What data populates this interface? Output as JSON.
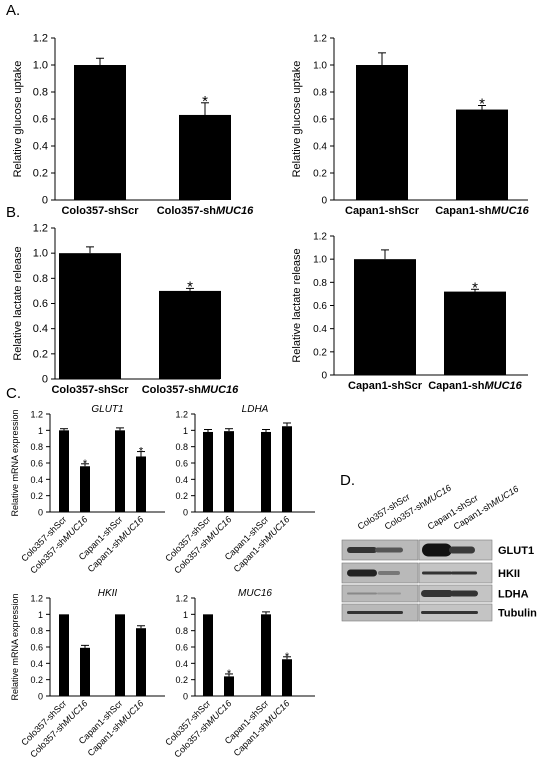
{
  "panels": {
    "a": "A.",
    "b": "B.",
    "c": "C.",
    "d": "D."
  },
  "chart_data": [
    {
      "id": "a1",
      "type": "bar",
      "ylabel": "Relative glucose uptake",
      "categories": [
        "Colo357-shScr",
        "Colo357-shMUC16"
      ],
      "values": [
        1.0,
        0.63
      ],
      "errors": [
        0.05,
        0.09
      ],
      "sig": [
        "",
        "*"
      ],
      "ylim": [
        0,
        1.2
      ],
      "yticks": [
        "0",
        "0.2",
        "0.4",
        "0.6",
        "0.8",
        "1.0",
        "1.2"
      ]
    },
    {
      "id": "a2",
      "type": "bar",
      "ylabel": "Relative glucose uptake",
      "categories": [
        "Capan1-shScr",
        "Capan1-shMUC16"
      ],
      "values": [
        1.0,
        0.67
      ],
      "errors": [
        0.09,
        0.03
      ],
      "sig": [
        "",
        "*"
      ],
      "ylim": [
        0,
        1.2
      ],
      "yticks": [
        "0",
        "0.2",
        "0.4",
        "0.6",
        "0.8",
        "1.0",
        "1.2"
      ]
    },
    {
      "id": "b1",
      "type": "bar",
      "ylabel": "Relative lactate release",
      "categories": [
        "Colo357-shScr",
        "Colo357-shMUC16"
      ],
      "values": [
        1.0,
        0.7
      ],
      "errors": [
        0.05,
        0.02
      ],
      "sig": [
        "",
        "*"
      ],
      "ylim": [
        0,
        1.2
      ],
      "yticks": [
        "0",
        "0.2",
        "0.4",
        "0.6",
        "0.8",
        "1.0",
        "1.2"
      ]
    },
    {
      "id": "b2",
      "type": "bar",
      "ylabel": "Relative lactate release",
      "categories": [
        "Capan1-shScr",
        "Capan1-shMUC16"
      ],
      "values": [
        1.0,
        0.72
      ],
      "errors": [
        0.08,
        0.02
      ],
      "sig": [
        "",
        "*"
      ],
      "ylim": [
        0,
        1.2
      ],
      "yticks": [
        "0",
        "0.2",
        "0.4",
        "0.6",
        "0.8",
        "1.0",
        "1.2"
      ]
    },
    {
      "id": "c1",
      "type": "bar",
      "title": "GLUT1",
      "ylabel": "Relative mRNA expression",
      "categories": [
        "Colo357-shScr",
        "Colo357-shMUC16",
        "Capan1-shScr",
        "Capan1-shMUC16"
      ],
      "values": [
        1.0,
        0.56,
        1.0,
        0.68
      ],
      "errors": [
        0.02,
        0.03,
        0.03,
        0.06
      ],
      "sig": [
        "",
        "*",
        "",
        "*"
      ],
      "ylim": [
        0,
        1.2
      ],
      "yticks": [
        "0",
        "0.2",
        "0.4",
        "0.6",
        "0.8",
        "1",
        "1.2"
      ]
    },
    {
      "id": "c2",
      "type": "bar",
      "title": "LDHA",
      "ylabel": "",
      "categories": [
        "Colo357-shScr",
        "Colo357-shMUC16",
        "Capan1-shScr",
        "Capan1-shMUC16"
      ],
      "values": [
        0.98,
        0.99,
        0.98,
        1.05
      ],
      "errors": [
        0.03,
        0.03,
        0.03,
        0.04
      ],
      "sig": [
        "",
        "",
        "",
        ""
      ],
      "ylim": [
        0,
        1.2
      ],
      "yticks": [
        "0",
        "0.2",
        "0.4",
        "0.6",
        "0.8",
        "1",
        "1.2"
      ]
    },
    {
      "id": "c3",
      "type": "bar",
      "title": "HKII",
      "ylabel": "Relative mRNA expression",
      "categories": [
        "Colo357-shScr",
        "Colo357-shMUC16",
        "Capan1-shScr",
        "Capan1-shMUC16"
      ],
      "values": [
        1.0,
        0.59,
        1.0,
        0.83
      ],
      "errors": [
        0.0,
        0.03,
        0.0,
        0.03
      ],
      "sig": [
        "",
        "",
        "",
        ""
      ],
      "ylim": [
        0,
        1.2
      ],
      "yticks": [
        "0",
        "0.2",
        "0.4",
        "0.6",
        "0.8",
        "1",
        "1.2"
      ]
    },
    {
      "id": "c4",
      "type": "bar",
      "title": "MUC16",
      "ylabel": "",
      "categories": [
        "Colo357-shScr",
        "Colo357-shMUC16",
        "Capan1-shScr",
        "Capan1-shMUC16"
      ],
      "values": [
        1.0,
        0.24,
        1.0,
        0.45
      ],
      "errors": [
        0.0,
        0.03,
        0.03,
        0.03
      ],
      "sig": [
        "",
        "*",
        "",
        "*"
      ],
      "ylim": [
        0,
        1.2
      ],
      "yticks": [
        "0",
        "0.2",
        "0.4",
        "0.6",
        "0.8",
        "1",
        "1.2"
      ]
    }
  ],
  "blot": {
    "lanes": [
      "Colo357-shScr",
      "Colo357-shMUC16",
      "Capan1-shScr",
      "Capan1-shMUC16"
    ],
    "rows": [
      "GLUT1",
      "HKII",
      "LDHA",
      "Tubulin"
    ]
  }
}
